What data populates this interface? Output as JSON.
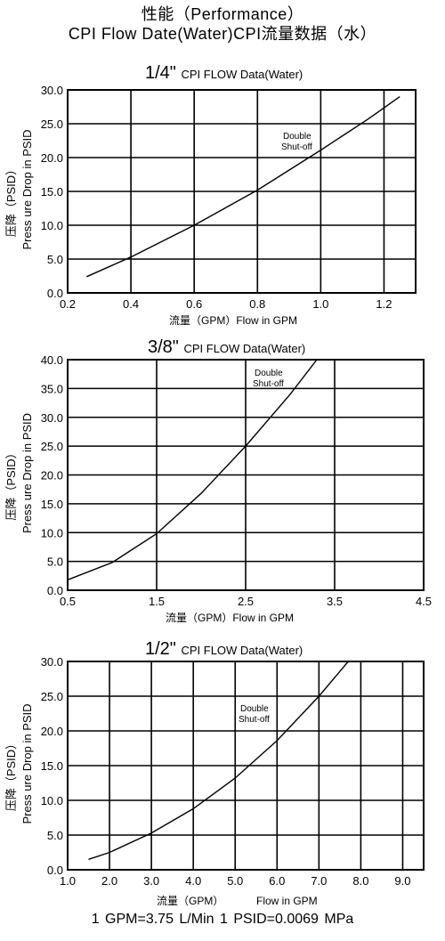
{
  "header": {
    "line1": "性能（Performance）",
    "line2": "CPI Flow Date(Water)CPI流量数据（水）"
  },
  "footer": "1 GPM=3.75 L/Min   1 PSID=0.0069 MPa",
  "chart_data": [
    {
      "type": "line",
      "title_size": "1/4\"",
      "title_text": "CPI FLOW Data(Water)",
      "xlabel": "流量（GPM）Flow in GPM",
      "ylabel_cn": "压降（PSID）",
      "ylabel_en": "Press ure Drop in PSID",
      "xlim": [
        0.2,
        1.3
      ],
      "ylim": [
        0,
        30
      ],
      "x_ticks": [
        0.2,
        0.4,
        0.6,
        0.8,
        1.0,
        1.2
      ],
      "x_tick_labels": [
        "0.2",
        "0.4",
        "0.6",
        "0.8",
        "1.0",
        "1.2"
      ],
      "y_ticks": [
        0,
        5,
        10,
        15,
        20,
        25,
        30
      ],
      "y_tick_labels": [
        "0.0",
        "5.0",
        "10.0",
        "15.0",
        "20.0",
        "25.0",
        "30.0"
      ],
      "grid": true,
      "annotation": [
        "Double",
        "Shut-off"
      ],
      "series": [
        {
          "x": [
            0.26,
            0.4,
            0.6,
            0.8,
            1.0,
            1.15,
            1.25
          ],
          "y": [
            2.4,
            5.3,
            10.0,
            15.2,
            21.1,
            25.7,
            29.0
          ]
        }
      ]
    },
    {
      "type": "line",
      "title_size": "3/8\"",
      "title_text": "CPI FLOW Data(Water)",
      "xlabel": "流量（GPM）Flow in GPM",
      "ylabel_cn": "压降（PSID）",
      "ylabel_en": "Press ure Drop in PSID",
      "xlim": [
        0.5,
        4.5
      ],
      "ylim": [
        0,
        40
      ],
      "x_ticks": [
        0.5,
        1.5,
        2.5,
        3.5,
        4.5
      ],
      "x_tick_labels": [
        "0.5",
        "1.5",
        "2.5",
        "3.5",
        "4.5"
      ],
      "y_ticks": [
        0,
        5,
        10,
        15,
        20,
        25,
        30,
        35,
        40
      ],
      "y_tick_labels": [
        "0.0",
        "5.0",
        "10.0",
        "15.0",
        "20.0",
        "25.0",
        "30.0",
        "35.0",
        "40.0"
      ],
      "grid": true,
      "annotation": [
        "Double",
        "Shut-off"
      ],
      "series": [
        {
          "x": [
            0.5,
            1.0,
            1.5,
            2.0,
            2.5,
            3.0,
            3.3
          ],
          "y": [
            1.8,
            4.8,
            9.8,
            16.8,
            25.0,
            34.0,
            40.0
          ]
        }
      ]
    },
    {
      "type": "line",
      "title_size": "1/2\"",
      "title_text": "CPI FLOW Data(Water)",
      "xlabel": "流量（GPM）",
      "xlabel_en": "Flow in GPM",
      "ylabel_cn": "压降（PSID）",
      "ylabel_en": "Press ure Drop in PSID",
      "xlim": [
        1.0,
        9.5
      ],
      "ylim": [
        0,
        30
      ],
      "x_ticks": [
        1,
        2,
        3,
        4,
        5,
        6,
        7,
        8,
        9
      ],
      "x_tick_labels": [
        "1.0",
        "2.0",
        "3.0",
        "4.0",
        "5.0",
        "6.0",
        "7.0",
        "8.0",
        "9.0"
      ],
      "y_ticks": [
        0,
        5,
        10,
        15,
        20,
        25,
        30
      ],
      "y_tick_labels": [
        "0.0",
        "5.0",
        "10.0",
        "15.0",
        "20.0",
        "25.0",
        "30.0"
      ],
      "grid": true,
      "annotation": [
        "Double",
        "Shut-off"
      ],
      "series": [
        {
          "x": [
            1.5,
            2.0,
            3.0,
            4.0,
            5.0,
            6.0,
            7.0,
            7.7
          ],
          "y": [
            1.5,
            2.5,
            5.3,
            8.8,
            13.2,
            18.6,
            25.0,
            30.0
          ]
        }
      ]
    }
  ]
}
